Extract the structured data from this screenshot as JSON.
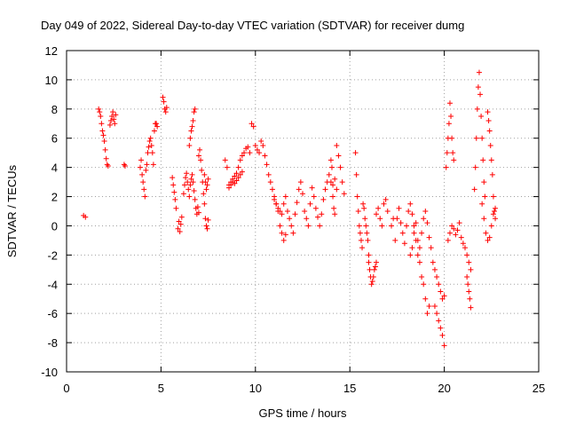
{
  "chart_data": {
    "type": "scatter",
    "title": "Day 049 of 2022, Sidereal Day-to-day VTEC variation (SDTVAR) for receiver dumg",
    "xlabel": "GPS time / hours",
    "ylabel": "SDTVAR / TECUs",
    "xlim": [
      0,
      25
    ],
    "ylim": [
      -10,
      12
    ],
    "x_ticks": [
      0,
      5,
      10,
      15,
      20,
      25
    ],
    "y_ticks": [
      -10,
      -8,
      -6,
      -4,
      -2,
      0,
      2,
      4,
      6,
      8,
      10,
      12
    ],
    "x_tick_labels": [
      "0",
      "5",
      "10",
      "15",
      "20",
      "25"
    ],
    "y_tick_labels": [
      "-10",
      "-8",
      "-6",
      "-4",
      "-2",
      "0",
      "2",
      "4",
      "6",
      "8",
      "10",
      "12"
    ],
    "grid": true,
    "marker": "+",
    "color": "#ff0000",
    "series": [
      {
        "name": "SDTVAR",
        "segments": [
          {
            "x": [
              0.9,
              1.0
            ],
            "y": [
              0.7,
              0.6
            ]
          },
          {
            "x": [
              1.7,
              1.75,
              1.8,
              1.85,
              1.9,
              1.95,
              2.0,
              2.05,
              2.1,
              2.15,
              2.2
            ],
            "y": [
              8.0,
              7.8,
              7.5,
              7.0,
              6.5,
              6.2,
              5.8,
              5.2,
              4.6,
              4.2,
              4.1
            ]
          },
          {
            "x": [
              2.3,
              2.35,
              2.4,
              2.45,
              2.5,
              2.55,
              2.6
            ],
            "y": [
              6.9,
              7.2,
              7.5,
              7.8,
              7.3,
              7.0,
              7.6
            ]
          },
          {
            "x": [
              3.05,
              3.1
            ],
            "y": [
              4.2,
              4.1
            ]
          },
          {
            "x": [
              3.9,
              3.95,
              4.0,
              4.05,
              4.1,
              4.15,
              4.2,
              4.25,
              4.3,
              4.35,
              4.4,
              4.45,
              4.5,
              4.55,
              4.6
            ],
            "y": [
              4.0,
              4.5,
              3.5,
              3.0,
              2.5,
              2.0,
              3.8,
              4.2,
              5.0,
              5.4,
              5.8,
              6.0,
              5.5,
              5.0,
              4.2
            ]
          },
          {
            "x": [
              4.65,
              4.7,
              4.75,
              4.8
            ],
            "y": [
              6.5,
              7.0,
              7.0,
              6.8
            ]
          },
          {
            "x": [
              5.1,
              5.15,
              5.2,
              5.25,
              5.3
            ],
            "y": [
              8.8,
              8.5,
              8.0,
              7.8,
              8.1
            ]
          },
          {
            "x": [
              5.6,
              5.65,
              5.7,
              5.75,
              5.8
            ],
            "y": [
              3.3,
              2.8,
              2.3,
              1.8,
              1.2
            ]
          },
          {
            "x": [
              5.9,
              5.95,
              6.0,
              6.05,
              6.1
            ],
            "y": [
              -0.2,
              0.3,
              -0.4,
              0.1,
              0.6
            ]
          },
          {
            "x": [
              6.2,
              6.25,
              6.3,
              6.35,
              6.4,
              6.45,
              6.5,
              6.55,
              6.6,
              6.65,
              6.7,
              6.75,
              6.8,
              6.85,
              6.9,
              6.95,
              7.0
            ],
            "y": [
              2.2,
              2.8,
              3.3,
              3.6,
              3.0,
              2.5,
              2.0,
              2.8,
              3.2,
              3.5,
              3.0,
              2.4,
              1.8,
              1.2,
              0.8,
              1.3,
              0.9
            ]
          },
          {
            "x": [
              6.5,
              6.55,
              6.6,
              6.65,
              6.7,
              6.75,
              6.8
            ],
            "y": [
              5.5,
              6.0,
              6.5,
              6.8,
              7.2,
              7.8,
              8.0
            ]
          },
          {
            "x": [
              7.0,
              7.05,
              7.1,
              7.15,
              7.2,
              7.25,
              7.3,
              7.35,
              7.4,
              7.45,
              7.5
            ],
            "y": [
              4.8,
              5.2,
              4.5,
              3.8,
              3.0,
              2.2,
              1.5,
              0.5,
              0.0,
              -0.2,
              0.4
            ]
          },
          {
            "x": [
              7.3,
              7.35,
              7.4,
              7.45,
              7.5
            ],
            "y": [
              3.5,
              3.0,
              2.5,
              2.8,
              3.2
            ]
          },
          {
            "x": [
              8.4,
              8.5,
              8.6,
              8.7,
              8.8,
              8.9,
              9.0,
              9.1,
              9.2,
              9.3,
              9.4,
              9.5
            ],
            "y": [
              4.5,
              4.0,
              2.8,
              3.0,
              3.2,
              3.4,
              3.6,
              4.0,
              4.5,
              4.8,
              5.0,
              5.3
            ]
          },
          {
            "x": [
              8.6,
              8.7,
              8.8,
              8.9,
              9.0,
              9.1,
              9.2,
              9.3
            ],
            "y": [
              2.6,
              2.8,
              3.0,
              2.9,
              3.1,
              3.3,
              3.5,
              3.7
            ]
          },
          {
            "x": [
              9.6,
              9.7,
              9.8,
              9.9,
              10.0,
              10.1,
              10.2
            ],
            "y": [
              5.4,
              5.0,
              7.0,
              6.8,
              5.5,
              5.2,
              5.0
            ]
          },
          {
            "x": [
              10.3,
              10.4,
              10.5,
              10.6,
              10.7,
              10.8,
              10.9,
              11.0,
              11.1,
              11.2,
              11.3,
              11.4,
              11.5,
              11.6
            ],
            "y": [
              5.8,
              5.5,
              4.8,
              4.2,
              3.5,
              3.0,
              2.5,
              2.0,
              1.5,
              1.0,
              0.0,
              -0.5,
              -1.0,
              -0.6
            ]
          },
          {
            "x": [
              11.0,
              11.1,
              11.2,
              11.3,
              11.4,
              11.5,
              11.6,
              11.7,
              11.8,
              11.9,
              12.0,
              12.1,
              12.2,
              12.3,
              12.4,
              12.5,
              12.6,
              12.7,
              12.8,
              12.9,
              13.0,
              13.1,
              13.2,
              13.3,
              13.4,
              13.5,
              13.6
            ],
            "y": [
              1.8,
              1.5,
              1.2,
              1.0,
              0.8,
              1.5,
              2.0,
              1.0,
              0.5,
              0.0,
              -0.5,
              0.8,
              1.6,
              2.5,
              3.0,
              2.2,
              1.0,
              0.5,
              0.0,
              1.5,
              2.6,
              2.0,
              1.2,
              0.6,
              0.0,
              0.8,
              1.8
            ]
          },
          {
            "x": [
              13.7,
              13.8,
              13.9,
              14.0,
              14.1,
              14.2,
              14.3
            ],
            "y": [
              2.5,
              3.0,
              3.5,
              3.0,
              2.8,
              3.2,
              2.5
            ]
          },
          {
            "x": [
              14.0,
              14.05,
              14.1,
              14.15,
              14.2
            ],
            "y": [
              4.5,
              4.0,
              2.0,
              1.2,
              0.8
            ]
          },
          {
            "x": [
              14.3,
              14.4,
              14.5,
              14.6,
              14.7
            ],
            "y": [
              5.5,
              4.8,
              4.0,
              3.0,
              2.2
            ]
          },
          {
            "x": [
              15.3,
              15.35,
              15.4,
              15.45,
              15.5,
              15.55,
              15.6,
              15.65,
              15.7,
              15.75,
              15.8,
              15.85,
              15.9,
              15.95,
              16.0
            ],
            "y": [
              5.0,
              3.5,
              2.0,
              1.0,
              0.0,
              -0.5,
              -1.0,
              -1.5,
              1.5,
              1.2,
              0.5,
              0.0,
              -0.5,
              -1.0,
              -2.0
            ]
          },
          {
            "x": [
              16.0,
              16.05,
              16.1,
              16.15,
              16.2,
              16.25,
              16.3,
              16.35,
              16.4
            ],
            "y": [
              -2.5,
              -3.0,
              -3.5,
              -4.0,
              -3.8,
              -3.5,
              -3.0,
              -2.8,
              -2.5
            ]
          },
          {
            "x": [
              16.4,
              16.5,
              16.6,
              16.7,
              16.8,
              16.9,
              17.0
            ],
            "y": [
              0.8,
              1.2,
              0.5,
              0.0,
              1.5,
              1.8,
              1.0
            ]
          },
          {
            "x": [
              17.2,
              17.3,
              17.4,
              17.5,
              17.6,
              17.7,
              17.8,
              17.9,
              18.0,
              18.1,
              18.2,
              18.3,
              18.4,
              18.5,
              18.6,
              18.7,
              18.8,
              18.9,
              19.0,
              19.1,
              19.2,
              19.3,
              19.4,
              19.5,
              19.6,
              19.7,
              19.8,
              19.9,
              20.0
            ],
            "y": [
              0.0,
              0.5,
              -1.0,
              0.5,
              1.2,
              0.2,
              -0.5,
              -1.2,
              0.0,
              1.0,
              1.5,
              0.8,
              0.0,
              -1.0,
              -2.0,
              -1.5,
              -0.5,
              0.5,
              1.0,
              0.2,
              -0.8,
              -1.5,
              -2.5,
              -3.0,
              -3.5,
              -4.0,
              -4.5,
              -5.0,
              -4.8
            ]
          },
          {
            "x": [
              18.2,
              18.3,
              18.4,
              18.5,
              18.6,
              18.7,
              18.8,
              18.9,
              19.0,
              19.1,
              19.2
            ],
            "y": [
              -2.0,
              -1.5,
              -0.5,
              0.2,
              -1.0,
              -2.5,
              -3.5,
              -4.0,
              -5.0,
              -6.0,
              -5.5
            ]
          },
          {
            "x": [
              19.5,
              19.6,
              19.7,
              19.8,
              19.9,
              20.0
            ],
            "y": [
              -5.5,
              -6.0,
              -6.5,
              -7.0,
              -7.5,
              -8.2
            ]
          },
          {
            "x": [
              20.1,
              20.15,
              20.2,
              20.25,
              20.3,
              20.35,
              20.4,
              20.45,
              20.5
            ],
            "y": [
              4.0,
              5.0,
              6.0,
              7.0,
              8.4,
              7.5,
              6.0,
              5.0,
              4.5
            ]
          },
          {
            "x": [
              20.2,
              20.3,
              20.4,
              20.5,
              20.6,
              20.7,
              20.8,
              20.9,
              21.0,
              21.1,
              21.2,
              21.3,
              21.4
            ],
            "y": [
              -1.0,
              -0.5,
              0.0,
              -0.2,
              -0.6,
              -0.3,
              0.2,
              -0.8,
              -1.2,
              -1.5,
              -2.0,
              -2.5,
              -3.0
            ]
          },
          {
            "x": [
              21.2,
              21.25,
              21.3,
              21.35,
              21.4
            ],
            "y": [
              -3.5,
              -4.0,
              -4.5,
              -5.0,
              -5.6
            ]
          },
          {
            "x": [
              21.6,
              21.65,
              21.7,
              21.75,
              21.8,
              21.85,
              21.9,
              21.95,
              22.0,
              22.05,
              22.1,
              22.15
            ],
            "y": [
              2.5,
              4.0,
              6.0,
              8.0,
              9.5,
              10.5,
              9.0,
              7.5,
              6.0,
              4.5,
              3.0,
              2.0
            ]
          },
          {
            "x": [
              22.0,
              22.1,
              22.2,
              22.3,
              22.4,
              22.5,
              22.6,
              22.7
            ],
            "y": [
              1.5,
              0.5,
              -0.5,
              -1.0,
              -0.8,
              0.0,
              0.8,
              1.2
            ]
          },
          {
            "x": [
              22.3,
              22.35,
              22.4,
              22.45,
              22.5,
              22.55
            ],
            "y": [
              7.8,
              7.2,
              6.5,
              5.5,
              4.5,
              3.5
            ]
          },
          {
            "x": [
              22.6,
              22.65,
              22.7
            ],
            "y": [
              2.0,
              1.0,
              0.5
            ]
          }
        ]
      }
    ]
  }
}
